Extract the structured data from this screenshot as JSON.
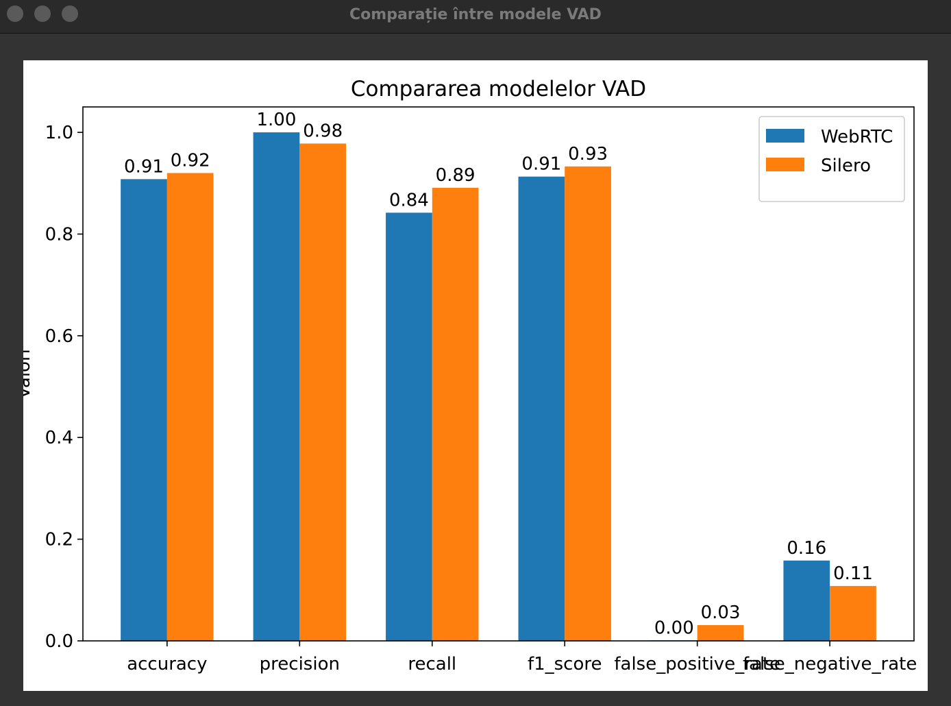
{
  "window": {
    "title": "Comparație între modele VAD"
  },
  "chart_data": {
    "type": "bar",
    "title": "Compararea modelelor VAD",
    "y_label": "Valori",
    "categories": [
      "accuracy",
      "precision",
      "recall",
      "f1_score",
      "false_positive_rate",
      "false_negative_rate"
    ],
    "series": [
      {
        "name": "WebRTC",
        "color": "#1f77b4",
        "values": [
          0.908,
          1.0,
          0.842,
          0.913,
          0.001,
          0.158
        ],
        "value_labels": [
          "0.91",
          "1.00",
          "0.84",
          "0.91",
          "0.00",
          "0.16"
        ]
      },
      {
        "name": "Silero",
        "color": "#ff7f0e",
        "values": [
          0.92,
          0.978,
          0.891,
          0.933,
          0.031,
          0.108
        ],
        "value_labels": [
          "0.92",
          "0.98",
          "0.89",
          "0.93",
          "0.03",
          "0.11"
        ]
      }
    ],
    "ylim": [
      0,
      1.05
    ],
    "yticks": [
      {
        "value": 0,
        "label": "0.0"
      },
      0.2,
      0.4,
      0.6,
      0.8,
      {
        "value": 1,
        "label": "1.0"
      }
    ],
    "legend": "upper right"
  }
}
